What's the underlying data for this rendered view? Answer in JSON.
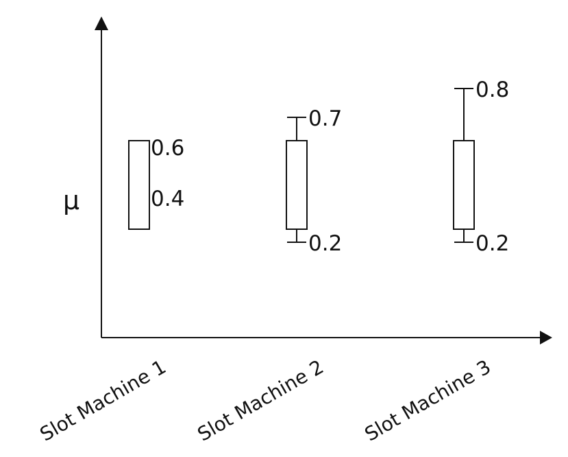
{
  "chart_data": {
    "type": "box",
    "title": "",
    "xlabel": "",
    "ylabel": "μ",
    "categories": [
      "Slot Machine 1",
      "Slot Machine 2",
      "Slot Machine 3"
    ],
    "series": [
      {
        "category": "Slot Machine 1",
        "upper": 0.6,
        "lower": 0.4,
        "upper_label": "0.6",
        "lower_label": "0.4"
      },
      {
        "category": "Slot Machine 2",
        "upper": 0.7,
        "lower": 0.2,
        "upper_label": "0.7",
        "lower_label": "0.2"
      },
      {
        "category": "Slot Machine 3",
        "upper": 0.8,
        "lower": 0.2,
        "upper_label": "0.8",
        "lower_label": "0.2"
      }
    ],
    "grid": false,
    "legend": "none"
  },
  "colors": {
    "stroke": "#111111",
    "background": "#ffffff"
  }
}
